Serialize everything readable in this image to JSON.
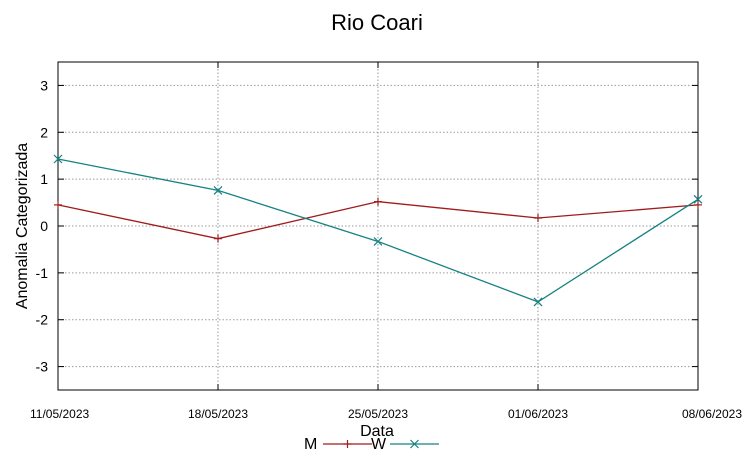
{
  "chart_data": {
    "type": "line",
    "title": "Rio Coari",
    "xlabel": "Data",
    "ylabel": "Anomalia Categorizada",
    "categories": [
      "11/05/2023",
      "18/05/2023",
      "25/05/2023",
      "01/06/2023",
      "08/06/2023"
    ],
    "ylim": [
      -3.5,
      3.5
    ],
    "yticks": [
      3,
      2,
      1,
      0,
      -1,
      -2,
      -3
    ],
    "grid": true,
    "legend_position": "bottom",
    "series": [
      {
        "name": "M",
        "color": "#a01c1c",
        "marker": "plus",
        "values": [
          0.45,
          -0.27,
          0.52,
          0.17,
          0.45
        ]
      },
      {
        "name": "W",
        "color": "#168282",
        "marker": "cross",
        "values": [
          1.43,
          0.76,
          -0.33,
          -1.62,
          0.57
        ]
      }
    ]
  }
}
